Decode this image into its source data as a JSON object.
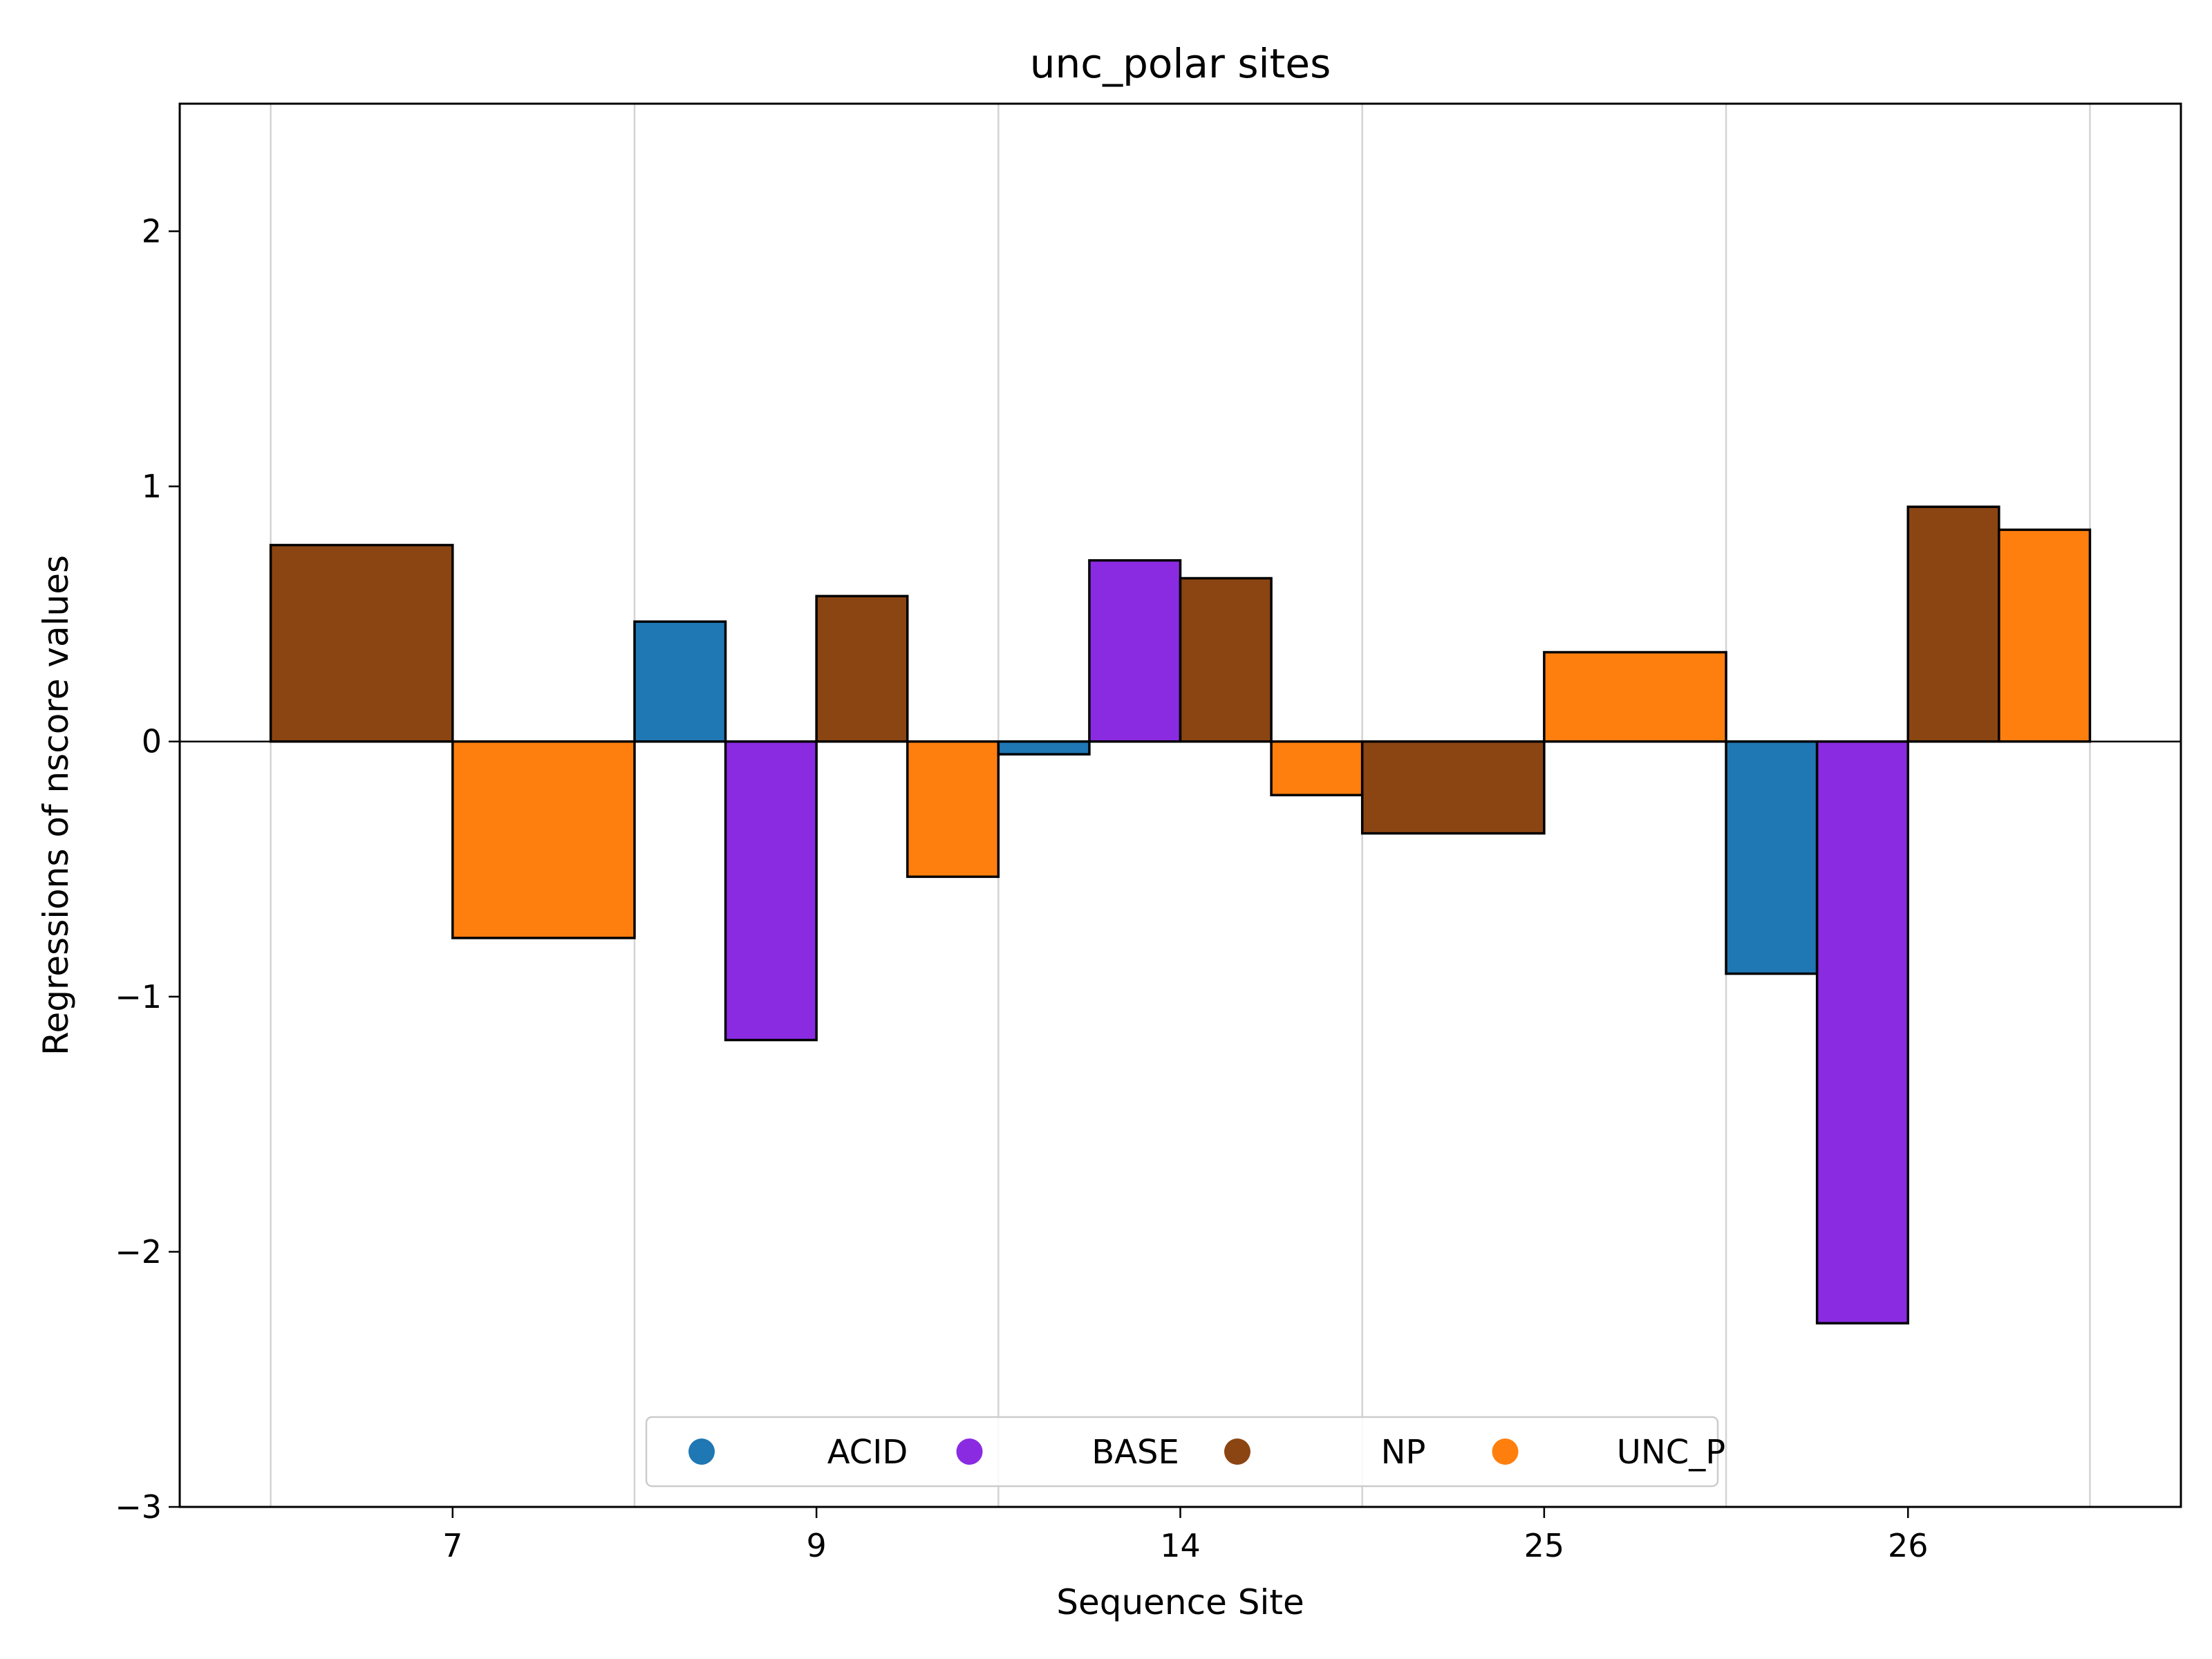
{
  "chart_data": {
    "type": "bar",
    "title": "unc_polar sites",
    "xlabel": "Sequence Site",
    "ylabel": "Regressions of nscore values",
    "ylim": [
      -3,
      2.5
    ],
    "yticks": [
      -3,
      -2,
      -1,
      0,
      1,
      2
    ],
    "ytick_labels": [
      "−3",
      "−2",
      "−1",
      "0",
      "1",
      "2"
    ],
    "grid": "vertical",
    "legend_position": "lower-center",
    "colors": {
      "ACID": "#1f77b4",
      "BASE": "#8a2be2",
      "NP": "#8b4513",
      "UNC_P": "#ff7f0e"
    },
    "series": [
      {
        "name": "ACID",
        "color": "#1f77b4"
      },
      {
        "name": "BASE",
        "color": "#8a2be2"
      },
      {
        "name": "NP",
        "color": "#8b4513"
      },
      {
        "name": "UNC_P",
        "color": "#ff7f0e"
      }
    ],
    "groups": [
      {
        "site": "7",
        "bars": [
          {
            "series": "NP",
            "value": 0.77
          },
          {
            "series": "UNC_P",
            "value": -0.77
          }
        ]
      },
      {
        "site": "9",
        "bars": [
          {
            "series": "ACID",
            "value": 0.47
          },
          {
            "series": "BASE",
            "value": -1.17
          },
          {
            "series": "NP",
            "value": 0.57
          },
          {
            "series": "UNC_P",
            "value": -0.53
          }
        ]
      },
      {
        "site": "14",
        "bars": [
          {
            "series": "ACID",
            "value": -0.05
          },
          {
            "series": "BASE",
            "value": 0.71
          },
          {
            "series": "NP",
            "value": 0.64
          },
          {
            "series": "UNC_P",
            "value": -0.21
          }
        ]
      },
      {
        "site": "25",
        "bars": [
          {
            "series": "NP",
            "value": -0.36
          },
          {
            "series": "UNC_P",
            "value": 0.35
          }
        ]
      },
      {
        "site": "26",
        "bars": [
          {
            "series": "ACID",
            "value": -0.91
          },
          {
            "series": "BASE",
            "value": -2.28
          },
          {
            "series": "NP",
            "value": 0.92
          },
          {
            "series": "UNC_P",
            "value": 0.83
          }
        ]
      }
    ]
  }
}
